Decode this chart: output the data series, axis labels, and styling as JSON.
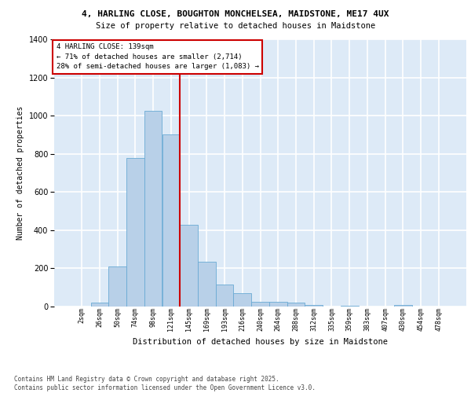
{
  "title_line1": "4, HARLING CLOSE, BOUGHTON MONCHELSEA, MAIDSTONE, ME17 4UX",
  "title_line2": "Size of property relative to detached houses in Maidstone",
  "xlabel": "Distribution of detached houses by size in Maidstone",
  "ylabel": "Number of detached properties",
  "footnote": "Contains HM Land Registry data © Crown copyright and database right 2025.\nContains public sector information licensed under the Open Government Licence v3.0.",
  "bar_labels": [
    "2sqm",
    "26sqm",
    "50sqm",
    "74sqm",
    "98sqm",
    "121sqm",
    "145sqm",
    "169sqm",
    "193sqm",
    "216sqm",
    "240sqm",
    "264sqm",
    "288sqm",
    "312sqm",
    "335sqm",
    "359sqm",
    "383sqm",
    "407sqm",
    "430sqm",
    "454sqm",
    "478sqm"
  ],
  "bar_values": [
    0,
    20,
    210,
    780,
    1025,
    900,
    430,
    235,
    115,
    70,
    25,
    25,
    20,
    10,
    0,
    5,
    0,
    0,
    10,
    0,
    0
  ],
  "bar_color": "#b8d0e8",
  "bar_edge_color": "#6aaad4",
  "background_color": "#ddeaf7",
  "grid_color": "#ffffff",
  "vline_color": "#cc0000",
  "vline_x_index": 5,
  "annotation_title": "4 HARLING CLOSE: 139sqm",
  "annotation_line1": "← 71% of detached houses are smaller (2,714)",
  "annotation_line2": "28% of semi-detached houses are larger (1,083) →",
  "annotation_box_color": "white",
  "annotation_box_edge": "#cc0000",
  "ylim": [
    0,
    1400
  ],
  "yticks": [
    0,
    200,
    400,
    600,
    800,
    1000,
    1200,
    1400
  ]
}
